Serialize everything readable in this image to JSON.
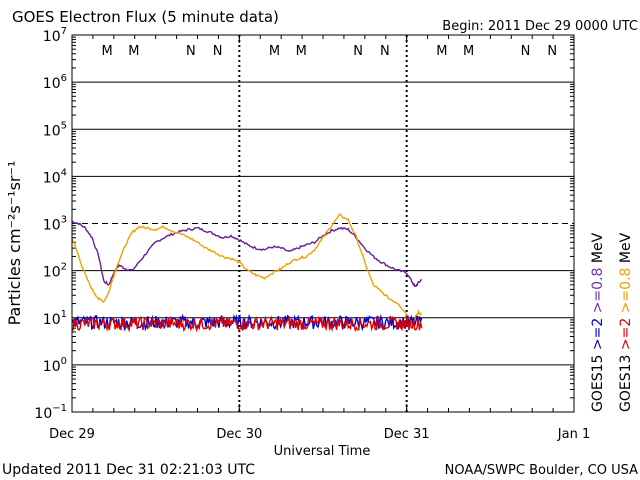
{
  "header": {
    "title": "GOES Electron Flux (5 minute data)",
    "begin": "Begin: 2011 Dec 29 0000 UTC"
  },
  "footer": {
    "updated": "Updated 2011 Dec 31 02:21:03 UTC",
    "credit": "NOAA/SWPC Boulder, CO USA"
  },
  "chart_data": {
    "type": "line",
    "title": "GOES Electron Flux (5 minute data)",
    "xlabel": "Universal Time",
    "ylabel": "Particles cm⁻²s⁻¹sr⁻¹",
    "yscale": "log",
    "ylim": [
      0.1,
      10000000
    ],
    "xlim": [
      0,
      3
    ],
    "x_units": "days since 2011 Dec 29 0000 UTC",
    "x_ticks": [
      {
        "x": 0,
        "label": "Dec 29"
      },
      {
        "x": 1,
        "label": "Dec 30"
      },
      {
        "x": 2,
        "label": "Dec 31"
      },
      {
        "x": 3,
        "label": "Jan 1"
      }
    ],
    "y_ticks": [
      {
        "exp": -1
      },
      {
        "exp": 0
      },
      {
        "exp": 1
      },
      {
        "exp": 2
      },
      {
        "exp": 3
      },
      {
        "exp": 4
      },
      {
        "exp": 5
      },
      {
        "exp": 6
      },
      {
        "exp": 7
      }
    ],
    "threshold_line": 1000,
    "day_markers": [
      1,
      2
    ],
    "orbit_labels": [
      {
        "x": 0.21,
        "text": "M",
        "color": "#dd0000"
      },
      {
        "x": 0.37,
        "text": "M",
        "color": "#0000cc"
      },
      {
        "x": 0.71,
        "text": "N",
        "color": "#dd0000"
      },
      {
        "x": 0.87,
        "text": "N",
        "color": "#0000cc"
      },
      {
        "x": 1.21,
        "text": "M",
        "color": "#dd0000"
      },
      {
        "x": 1.37,
        "text": "M",
        "color": "#0000cc"
      },
      {
        "x": 1.71,
        "text": "N",
        "color": "#dd0000"
      },
      {
        "x": 1.87,
        "text": "N",
        "color": "#0000cc"
      },
      {
        "x": 2.21,
        "text": "M",
        "color": "#dd0000"
      },
      {
        "x": 2.37,
        "text": "M",
        "color": "#0000cc"
      },
      {
        "x": 2.71,
        "text": "N",
        "color": "#dd0000"
      },
      {
        "x": 2.87,
        "text": "N",
        "color": "#0000cc"
      }
    ],
    "legend": {
      "left_col": [
        {
          "text": "GOES15",
          "color": "#000000"
        },
        {
          "text": ">=2",
          "color": "#0000cc"
        },
        {
          "text": ">=0.8",
          "color": "#7030a0"
        },
        {
          "text": "MeV",
          "color": "#000000"
        }
      ],
      "right_col": [
        {
          "text": "GOES13",
          "color": "#000000"
        },
        {
          "text": ">=2",
          "color": "#dd0000"
        },
        {
          "text": ">=0.8",
          "color": "#f0a000"
        },
        {
          "text": "MeV",
          "color": "#000000"
        }
      ]
    },
    "series": [
      {
        "name": "GOES15 >=0.8 MeV",
        "color": "#6a1b9a",
        "x": [
          0.0,
          0.04,
          0.08,
          0.12,
          0.16,
          0.19,
          0.22,
          0.25,
          0.28,
          0.32,
          0.36,
          0.4,
          0.45,
          0.5,
          0.55,
          0.6,
          0.65,
          0.7,
          0.75,
          0.8,
          0.85,
          0.9,
          0.95,
          1.0,
          1.05,
          1.1,
          1.15,
          1.2,
          1.25,
          1.3,
          1.35,
          1.4,
          1.45,
          1.5,
          1.55,
          1.6,
          1.65,
          1.7,
          1.75,
          1.8,
          1.85,
          1.9,
          1.95,
          2.0,
          2.03,
          2.05,
          2.07,
          2.09
        ],
        "y": [
          1100,
          1000,
          800,
          500,
          200,
          60,
          50,
          90,
          130,
          110,
          100,
          150,
          250,
          400,
          500,
          600,
          680,
          750,
          800,
          700,
          600,
          500,
          550,
          450,
          350,
          300,
          280,
          320,
          300,
          250,
          300,
          350,
          400,
          550,
          700,
          800,
          750,
          500,
          300,
          200,
          150,
          120,
          100,
          90,
          60,
          45,
          55,
          65
        ]
      },
      {
        "name": "GOES13 >=0.8 MeV",
        "color": "#f0a000",
        "x": [
          0.0,
          0.04,
          0.08,
          0.12,
          0.16,
          0.19,
          0.22,
          0.25,
          0.28,
          0.32,
          0.36,
          0.4,
          0.45,
          0.5,
          0.55,
          0.6,
          0.65,
          0.7,
          0.75,
          0.8,
          0.85,
          0.9,
          0.95,
          1.0,
          1.05,
          1.1,
          1.15,
          1.2,
          1.25,
          1.3,
          1.35,
          1.4,
          1.45,
          1.5,
          1.55,
          1.6,
          1.65,
          1.7,
          1.75,
          1.8,
          1.85,
          1.9,
          1.95,
          2.0,
          2.03,
          2.05,
          2.07,
          2.09
        ],
        "y": [
          500,
          200,
          80,
          40,
          25,
          22,
          35,
          80,
          160,
          350,
          650,
          850,
          800,
          750,
          850,
          700,
          600,
          500,
          400,
          300,
          250,
          200,
          180,
          150,
          100,
          80,
          70,
          90,
          110,
          150,
          180,
          200,
          280,
          500,
          900,
          1500,
          1200,
          500,
          150,
          50,
          35,
          25,
          20,
          12,
          8,
          10,
          13,
          12
        ]
      },
      {
        "name": "GOES15 >=2 MeV",
        "color": "#0000cc",
        "x": [
          0.0,
          2.09
        ],
        "y": [
          8,
          8
        ]
      },
      {
        "name": "GOES13 >=2 MeV",
        "color": "#dd0000",
        "x": [
          0.0,
          2.09
        ],
        "y": [
          7.5,
          7.5
        ]
      }
    ]
  }
}
